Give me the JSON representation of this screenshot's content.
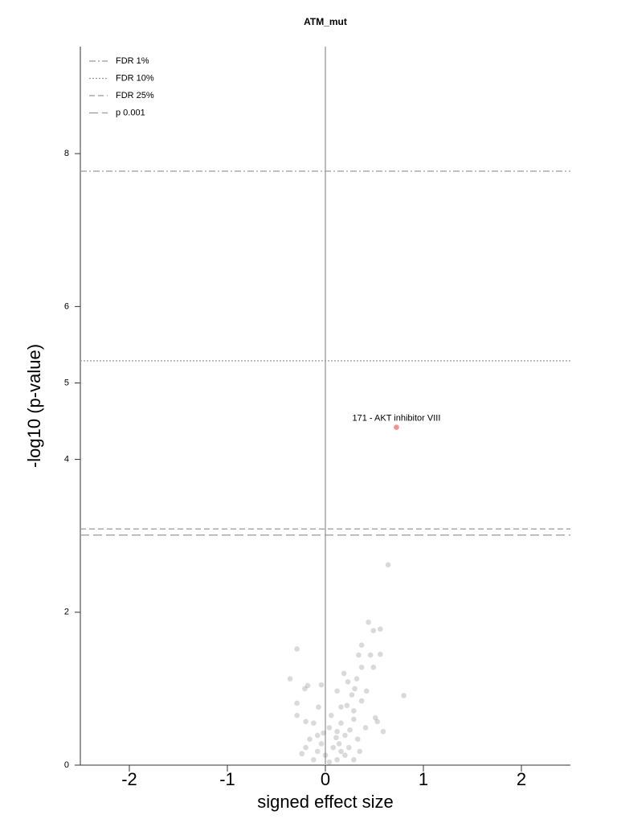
{
  "chart_data": {
    "type": "scatter",
    "title": "ATM_mut",
    "xlabel": "signed effect size",
    "ylabel": "-log10 (p-value)",
    "xlim": [
      -2.5,
      2.5
    ],
    "ylim": [
      0,
      9.4
    ],
    "xticks": [
      -2,
      -1,
      0,
      1,
      2
    ],
    "yticks": [
      0,
      2,
      4,
      5,
      6,
      8
    ],
    "color": "#555555",
    "vline": 0,
    "x": [
      0.64,
      0.44,
      0.56,
      0.49,
      -0.29,
      0.37,
      0.34,
      0.46,
      0.56,
      0.49,
      0.37,
      0.19,
      -0.36,
      0.32,
      0.23,
      -0.18,
      -0.04,
      -0.21,
      0.8,
      0.12,
      0.27,
      0.37,
      -0.29,
      0.16,
      0.29,
      0.51,
      -0.29,
      -0.2,
      0.53,
      0.59,
      -0.07,
      -0.12,
      0.04,
      0.12,
      0.2,
      -0.08,
      -0.04,
      0.08,
      0.16,
      0.0,
      -0.08,
      -0.2,
      0.24,
      0.29,
      0.12,
      -0.12,
      0.04,
      0.2,
      0.33,
      -0.16,
      0.41,
      0.29,
      0.16,
      0.06,
      0.25,
      0.14,
      -0.02,
      -0.24,
      0.35,
      0.11,
      0.22,
      0.3,
      0.42
    ],
    "values": [
      2.62,
      1.87,
      1.78,
      1.76,
      1.52,
      1.57,
      1.44,
      1.44,
      1.45,
      1.28,
      1.28,
      1.2,
      1.13,
      1.13,
      1.09,
      1.04,
      1.05,
      1.0,
      0.91,
      0.97,
      0.92,
      0.84,
      0.81,
      0.76,
      0.71,
      0.62,
      0.65,
      0.57,
      0.57,
      0.44,
      0.76,
      0.55,
      0.49,
      0.44,
      0.39,
      0.39,
      0.28,
      0.23,
      0.18,
      0.13,
      0.18,
      0.23,
      0.23,
      0.07,
      0.07,
      0.07,
      0.04,
      0.13,
      0.34,
      0.34,
      0.49,
      0.6,
      0.55,
      0.65,
      0.46,
      0.28,
      0.42,
      0.15,
      0.18,
      0.36,
      0.78,
      1.0,
      0.97
    ],
    "highlight": {
      "label": "171 - AKT inhibitor VIII",
      "x": 0.725,
      "y": 4.42,
      "color": "#f08080"
    },
    "reference_lines": [
      {
        "label": "FDR 1%",
        "value": 7.77,
        "dash": "dashdot"
      },
      {
        "label": "FDR 10%",
        "value": 5.29,
        "dash": "dotted"
      },
      {
        "label": "FDR 25%",
        "value": 3.09,
        "dash": "dashed"
      },
      {
        "label": "p 0.001",
        "value": 3.01,
        "dash": "longdash"
      }
    ]
  }
}
